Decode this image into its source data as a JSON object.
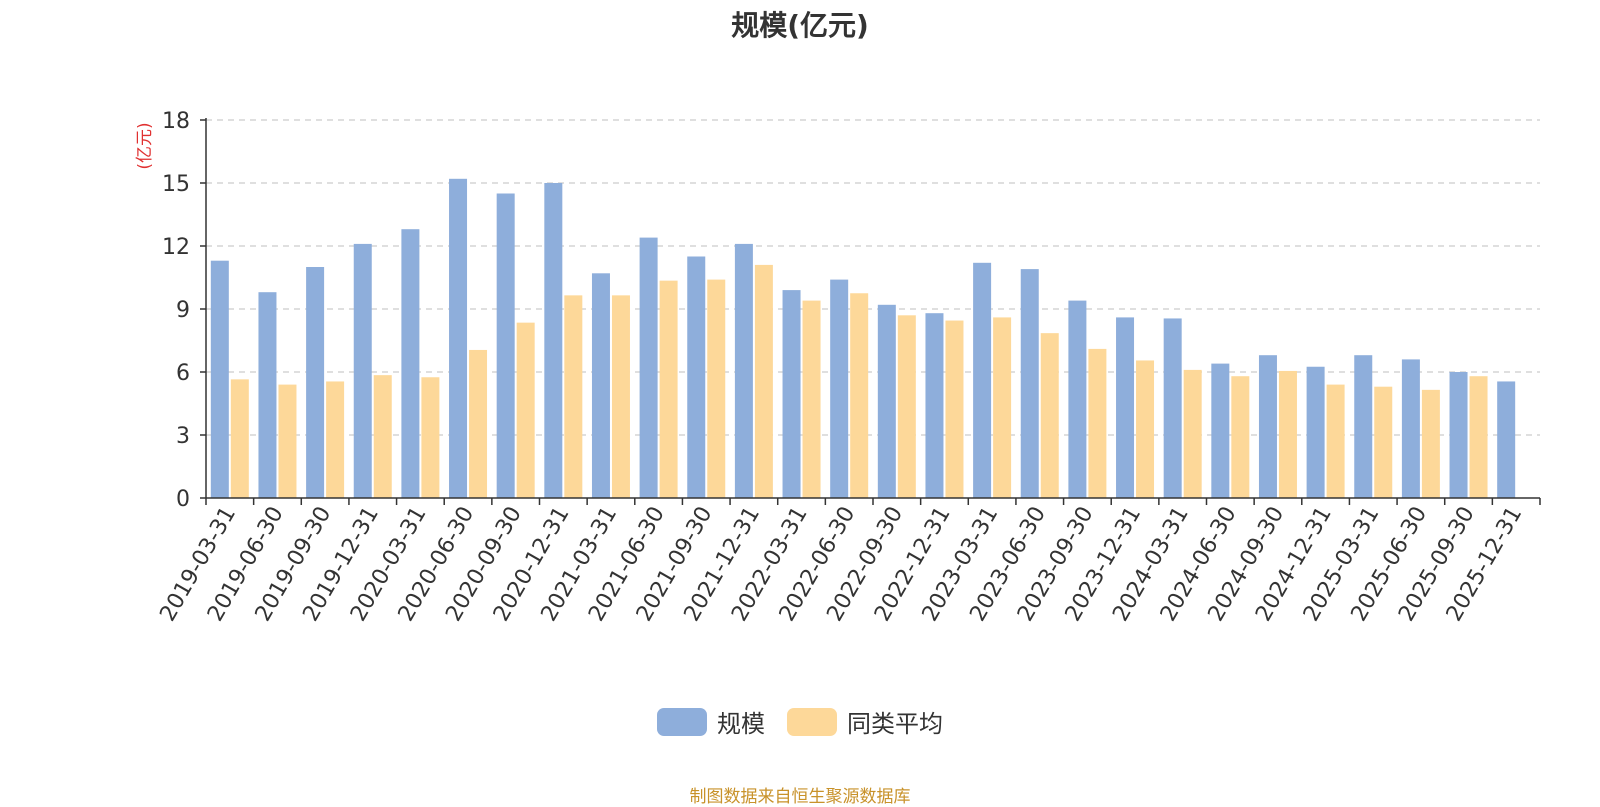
{
  "chart_data": {
    "type": "bar",
    "title": "规模(亿元)",
    "ylabel": "(亿元)",
    "xlabel": "",
    "ylim": [
      0,
      18
    ],
    "yticks": [
      0,
      3,
      6,
      9,
      12,
      15,
      18
    ],
    "grid": true,
    "legend_position": "bottom-center",
    "categories": [
      "2019-03-31",
      "2019-06-30",
      "2019-09-30",
      "2019-12-31",
      "2020-03-31",
      "2020-06-30",
      "2020-09-30",
      "2020-12-31",
      "2021-03-31",
      "2021-06-30",
      "2021-09-30",
      "2021-12-31",
      "2022-03-31",
      "2022-06-30",
      "2022-09-30",
      "2022-12-31",
      "2023-03-31",
      "2023-06-30",
      "2023-09-30",
      "2023-12-31",
      "2024-03-31",
      "2024-06-30",
      "2024-09-30",
      "2024-12-31",
      "2025-03-31",
      "2025-06-30",
      "2025-09-30",
      "2025-12-31"
    ],
    "series": [
      {
        "name": "规模",
        "color": "#8eaedb",
        "values": [
          11.3,
          9.8,
          11.0,
          12.1,
          12.8,
          15.2,
          14.5,
          15.0,
          10.7,
          12.4,
          11.5,
          12.1,
          9.9,
          10.4,
          9.2,
          8.8,
          11.2,
          10.9,
          9.4,
          8.6,
          8.55,
          6.4,
          6.8,
          6.25,
          6.8,
          6.6,
          6.0,
          5.55
        ]
      },
      {
        "name": "同类平均",
        "color": "#fdd899",
        "values": [
          5.65,
          5.4,
          5.55,
          5.85,
          5.75,
          7.05,
          8.35,
          9.65,
          9.65,
          10.35,
          10.4,
          11.1,
          9.4,
          9.75,
          8.7,
          8.45,
          8.6,
          7.85,
          7.1,
          6.55,
          6.1,
          5.8,
          6.05,
          5.4,
          5.3,
          5.15,
          5.8,
          null
        ]
      }
    ],
    "colors": {
      "axis": "#333333",
      "grid": "#cccccc",
      "ylabel": "#e03030"
    }
  },
  "source_note": "制图数据来自恒生聚源数据库"
}
